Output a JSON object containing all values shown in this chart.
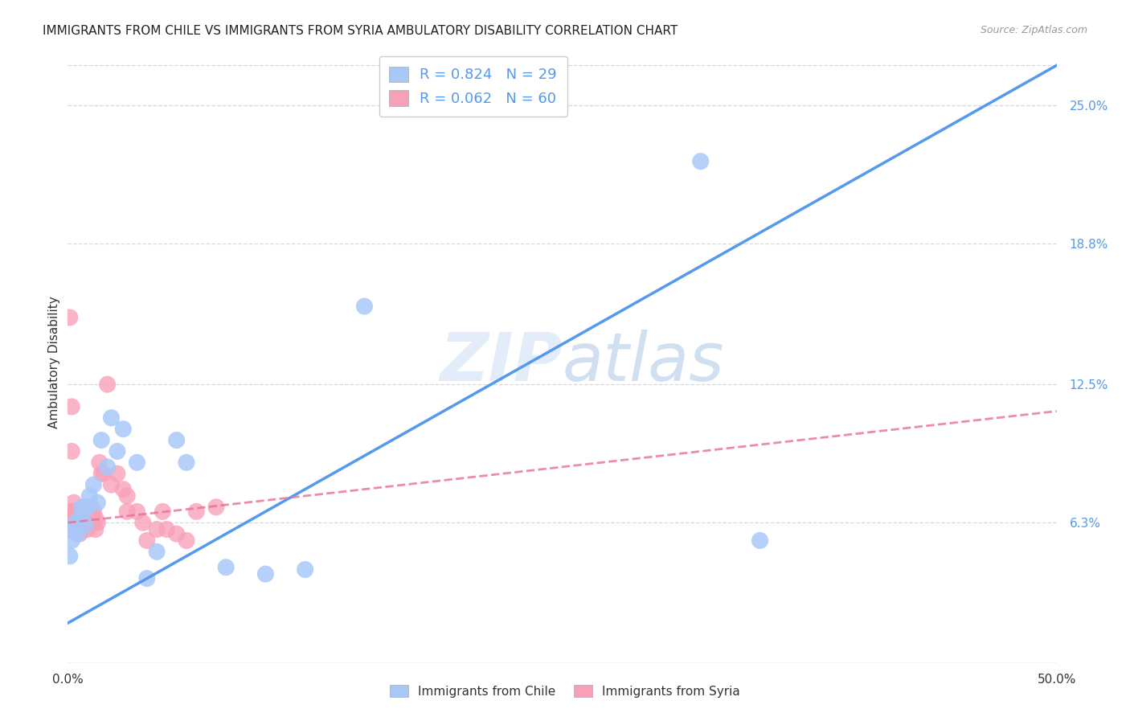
{
  "title": "IMMIGRANTS FROM CHILE VS IMMIGRANTS FROM SYRIA AMBULATORY DISABILITY CORRELATION CHART",
  "source": "Source: ZipAtlas.com",
  "ylabel": "Ambulatory Disability",
  "xlim": [
    0.0,
    0.5
  ],
  "ylim": [
    0.0,
    0.27
  ],
  "ytick_positions": [
    0.063,
    0.125,
    0.188,
    0.25
  ],
  "ytick_labels": [
    "6.3%",
    "12.5%",
    "18.8%",
    "25.0%"
  ],
  "xtick_positions": [
    0.0,
    0.1,
    0.2,
    0.3,
    0.4,
    0.5
  ],
  "xtick_labels": [
    "0.0%",
    "",
    "",
    "",
    "",
    "50.0%"
  ],
  "grid_color": "#d8d8d8",
  "bg_color": "#ffffff",
  "chile_dot_color": "#a8c8f8",
  "chile_line_color": "#5599ee",
  "syria_dot_color": "#f8a0b8",
  "syria_line_color": "#e87090",
  "R_chile": 0.824,
  "N_chile": 29,
  "R_syria": 0.062,
  "N_syria": 60,
  "watermark_zip": "ZIP",
  "watermark_atlas": "atlas",
  "legend_label_chile": "Immigrants from Chile",
  "legend_label_syria": "Immigrants from Syria",
  "chile_line_x0": 0.0,
  "chile_line_y0": 0.018,
  "chile_line_x1": 0.5,
  "chile_line_y1": 0.268,
  "syria_line_x0": 0.0,
  "syria_line_y0": 0.063,
  "syria_line_x1": 0.5,
  "syria_line_y1": 0.113,
  "chile_x": [
    0.001,
    0.002,
    0.003,
    0.004,
    0.005,
    0.006,
    0.007,
    0.008,
    0.009,
    0.01,
    0.011,
    0.013,
    0.015,
    0.017,
    0.02,
    0.022,
    0.025,
    0.028,
    0.035,
    0.04,
    0.045,
    0.055,
    0.06,
    0.08,
    0.1,
    0.12,
    0.15,
    0.32,
    0.35
  ],
  "chile_y": [
    0.048,
    0.055,
    0.06,
    0.063,
    0.058,
    0.065,
    0.07,
    0.068,
    0.062,
    0.07,
    0.075,
    0.08,
    0.072,
    0.1,
    0.088,
    0.11,
    0.095,
    0.105,
    0.09,
    0.038,
    0.05,
    0.1,
    0.09,
    0.043,
    0.04,
    0.042,
    0.16,
    0.225,
    0.055
  ],
  "syria_x": [
    0.001,
    0.001,
    0.001,
    0.002,
    0.002,
    0.002,
    0.002,
    0.003,
    0.003,
    0.003,
    0.003,
    0.004,
    0.004,
    0.004,
    0.005,
    0.005,
    0.005,
    0.005,
    0.006,
    0.006,
    0.006,
    0.007,
    0.007,
    0.007,
    0.008,
    0.008,
    0.009,
    0.009,
    0.01,
    0.01,
    0.011,
    0.011,
    0.012,
    0.012,
    0.013,
    0.013,
    0.014,
    0.014,
    0.015,
    0.016,
    0.017,
    0.018,
    0.02,
    0.022,
    0.025,
    0.028,
    0.03,
    0.03,
    0.035,
    0.038,
    0.04,
    0.045,
    0.048,
    0.05,
    0.055,
    0.06,
    0.065,
    0.075,
    0.002,
    0.003
  ],
  "syria_y": [
    0.155,
    0.068,
    0.06,
    0.115,
    0.095,
    0.068,
    0.06,
    0.068,
    0.063,
    0.06,
    0.065,
    0.068,
    0.063,
    0.06,
    0.068,
    0.063,
    0.06,
    0.065,
    0.068,
    0.063,
    0.058,
    0.068,
    0.065,
    0.06,
    0.068,
    0.063,
    0.068,
    0.063,
    0.068,
    0.06,
    0.065,
    0.068,
    0.065,
    0.07,
    0.063,
    0.068,
    0.065,
    0.06,
    0.063,
    0.09,
    0.085,
    0.085,
    0.125,
    0.08,
    0.085,
    0.078,
    0.075,
    0.068,
    0.068,
    0.063,
    0.055,
    0.06,
    0.068,
    0.06,
    0.058,
    0.055,
    0.068,
    0.07,
    0.068,
    0.072
  ]
}
